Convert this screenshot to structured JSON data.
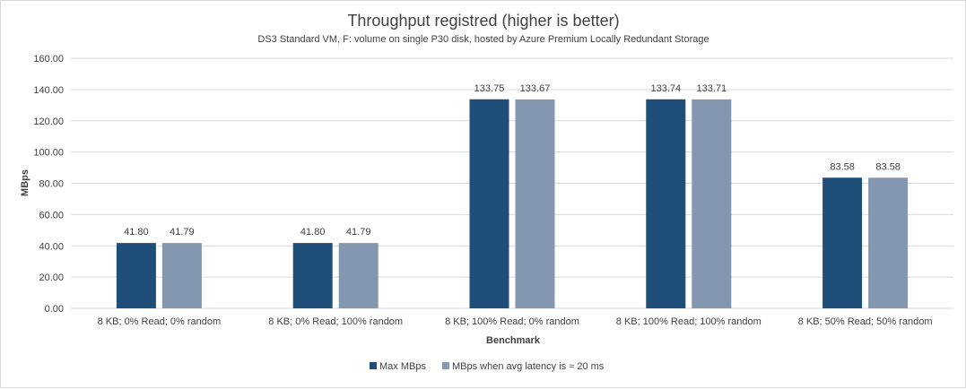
{
  "chart_data": {
    "type": "bar",
    "title": "Throughput registred (higher is better)",
    "subtitle": "DS3 Standard VM, F: volume on single P30 disk, hosted by Azure Premium Locally Redundant Storage",
    "xlabel": "Benchmark",
    "ylabel": "MBps",
    "ylim": [
      0,
      160
    ],
    "yticks": [
      "0.00",
      "20.00",
      "40.00",
      "60.00",
      "80.00",
      "100.00",
      "120.00",
      "140.00",
      "160.00"
    ],
    "grid": true,
    "legend_position": "bottom",
    "categories": [
      "8 KB; 0% Read; 0% random",
      "8 KB; 0% Read; 100% random",
      "8 KB; 100% Read; 0% random",
      "8 KB; 100% Read; 100% random",
      "8 KB; 50% Read; 50% random"
    ],
    "series": [
      {
        "name": "Max MBps",
        "color": "#1f4e79",
        "values": [
          41.8,
          41.8,
          133.75,
          133.74,
          83.58
        ],
        "labels": [
          "41.80",
          "41.80",
          "133.75",
          "133.74",
          "83.58"
        ]
      },
      {
        "name": "MBps when avg latency is ≈ 20 ms",
        "color": "#8497b0",
        "values": [
          41.79,
          41.79,
          133.67,
          133.71,
          83.58
        ],
        "labels": [
          "41.79",
          "41.79",
          "133.67",
          "133.71",
          "83.58"
        ]
      }
    ]
  }
}
